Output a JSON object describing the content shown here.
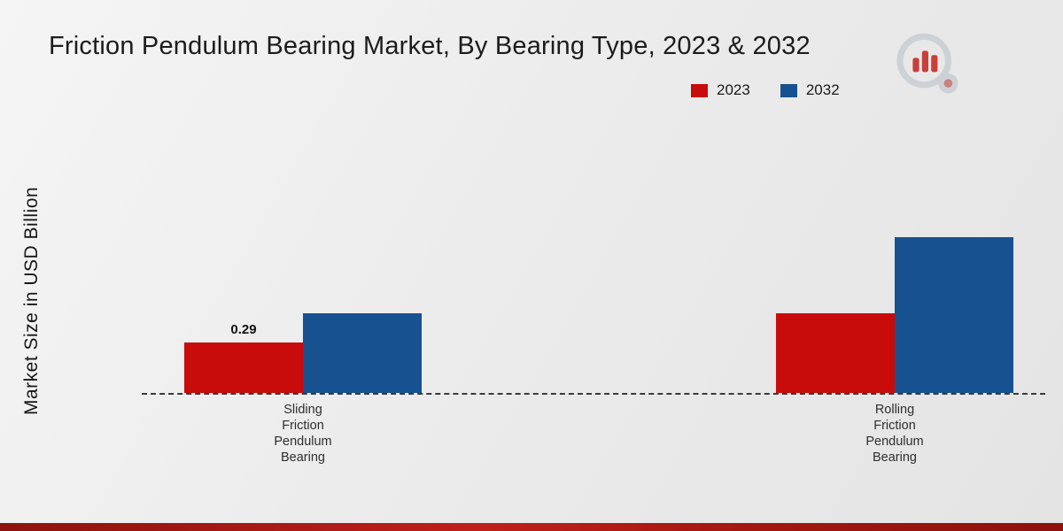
{
  "title": "Friction Pendulum Bearing Market, By Bearing Type, 2023 & 2032",
  "ylabel": "Market Size in USD Billion",
  "legend": [
    {
      "label": "2023",
      "color": "#c80b0b"
    },
    {
      "label": "2032",
      "color": "#17518f"
    }
  ],
  "icons": {
    "logo": "bar-chart-magnifier-logo"
  },
  "colors": {
    "series_2023": "#c80b0b",
    "series_2032": "#17518f",
    "footer_accent": "#a4170f",
    "axis_dash": "#3a3a3a"
  },
  "chart_data": {
    "type": "bar",
    "categories": [
      "Sliding Friction Pendulum Bearing",
      "Rolling Friction Pendulum Bearing"
    ],
    "series": [
      {
        "name": "2023",
        "color": "#c80b0b",
        "values": [
          0.29,
          0.46
        ]
      },
      {
        "name": "2032",
        "color": "#17518f",
        "values": [
          0.46,
          0.9
        ]
      }
    ],
    "data_labels": [
      {
        "series_index": 0,
        "category_index": 0,
        "text": "0.29"
      }
    ],
    "title": "Friction Pendulum Bearing Market, By Bearing Type, 2023 & 2032",
    "xlabel": "",
    "ylabel": "Market Size in USD Billion",
    "ylim": [
      0,
      1.0
    ],
    "grid": false,
    "legend_position": "top-right",
    "baseline_style": "dashed"
  }
}
